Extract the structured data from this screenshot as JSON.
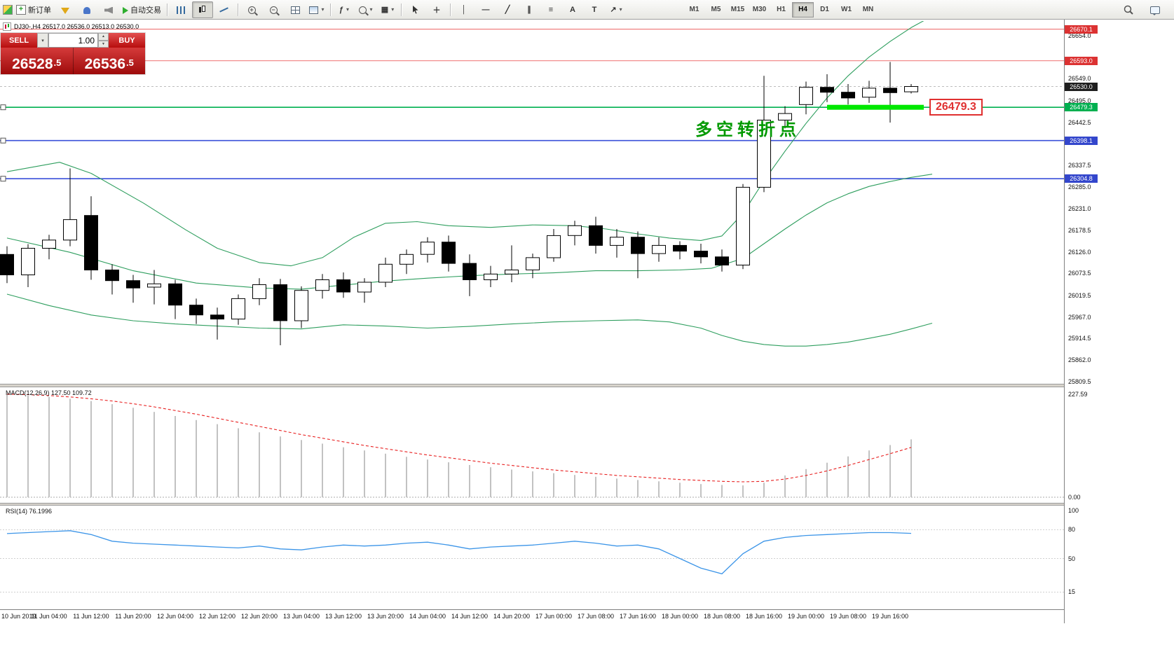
{
  "toolbar": {
    "new_order": "新订单",
    "auto_trading": "自动交易",
    "timeframes": [
      "M1",
      "M5",
      "M15",
      "M30",
      "H1",
      "H4",
      "D1",
      "W1",
      "MN"
    ],
    "active_timeframe": "H4"
  },
  "header": {
    "symbol_info": "DJ30-,H4  26517.0 26536.0 26513.0 26530.0"
  },
  "trade_panel": {
    "sell_label": "SELL",
    "buy_label": "BUY",
    "volume": "1.00",
    "sell_price_int": "26528",
    "sell_price_frac": ".5",
    "buy_price_int": "26536",
    "buy_price_frac": ".5"
  },
  "annotation": {
    "turning_point_text": "多空转折点",
    "level_tag": "26479.3"
  },
  "macd_panel": {
    "label": "MACD(12,26,9) 127.50 109.72"
  },
  "rsi_panel": {
    "label": "RSI(14) 76.1996"
  },
  "colors": {
    "line_red": "#f08080",
    "badge_red": "#dc3232",
    "level_green": "#00b050",
    "segment_green": "#00e800",
    "level_blue": "#3a50d9",
    "badge_blue": "#3346cc",
    "badge_dark": "#1f1f1f",
    "bollinger_green": "#2e9e5e",
    "macd_signal_red": "#e82020",
    "macd_hist_gray": "#c2c2c2",
    "rsi_blue": "#3c95e8",
    "annotation_green": "#009900",
    "trade_panel_red": "#b70d0d"
  },
  "chart_data": {
    "type": "candlestick",
    "title": "DJ30-,H4",
    "current_ohlc": {
      "open": 26517.0,
      "high": 26536.0,
      "low": 26513.0,
      "close": 26530.0
    },
    "y_range_top": 26690,
    "y_range_bottom": 25804,
    "bid_price": 26530.0,
    "price_axis_labels": [
      26654.0,
      26549.0,
      26495.0,
      26442.5,
      26337.5,
      26285.0,
      26231.0,
      26178.5,
      26126.0,
      26073.5,
      26019.5,
      25967.0,
      25914.5,
      25862.0,
      25809.5
    ],
    "price_badges": [
      {
        "price": 26670.1,
        "style": "red"
      },
      {
        "price": 26593.0,
        "style": "red"
      },
      {
        "price": 26530.0,
        "style": "dark"
      },
      {
        "price": 26479.3,
        "style": "green"
      },
      {
        "price": 26398.1,
        "style": "blue"
      },
      {
        "price": 26304.8,
        "style": "blue"
      }
    ],
    "levels": [
      {
        "price": 26670.1,
        "color": "red"
      },
      {
        "price": 26593.0,
        "color": "red"
      },
      {
        "price": 26479.3,
        "color": "green"
      },
      {
        "price": 26398.1,
        "color": "blue"
      },
      {
        "price": 26304.8,
        "color": "blue"
      }
    ],
    "highlight_segment": {
      "price": 26479.3,
      "from_bar": 39,
      "to_bar": 43.6
    },
    "candles": [
      [
        26120,
        26140,
        26050,
        26070
      ],
      [
        26070,
        26145,
        26040,
        26135
      ],
      [
        26135,
        26168,
        26108,
        26155
      ],
      [
        26155,
        26330,
        26140,
        26205
      ],
      [
        26215,
        26262,
        26058,
        26082
      ],
      [
        26082,
        26096,
        26022,
        26056
      ],
      [
        26056,
        26070,
        26002,
        26038
      ],
      [
        26040,
        26082,
        25998,
        26048
      ],
      [
        26048,
        26058,
        25962,
        25996
      ],
      [
        25996,
        26012,
        25950,
        25972
      ],
      [
        25972,
        25990,
        25912,
        25962
      ],
      [
        25962,
        26022,
        25948,
        26012
      ],
      [
        26012,
        26062,
        25996,
        26046
      ],
      [
        26046,
        26060,
        25898,
        25958
      ],
      [
        25958,
        26042,
        25940,
        26032
      ],
      [
        26032,
        26072,
        26012,
        26058
      ],
      [
        26058,
        26076,
        26014,
        26028
      ],
      [
        26028,
        26062,
        26002,
        26052
      ],
      [
        26052,
        26112,
        26040,
        26096
      ],
      [
        26096,
        26132,
        26072,
        26120
      ],
      [
        26120,
        26162,
        26100,
        26150
      ],
      [
        26150,
        26166,
        26078,
        26098
      ],
      [
        26098,
        26120,
        26018,
        26058
      ],
      [
        26058,
        26092,
        26040,
        26072
      ],
      [
        26072,
        26142,
        26052,
        26082
      ],
      [
        26082,
        26122,
        26062,
        26112
      ],
      [
        26112,
        26182,
        26102,
        26166
      ],
      [
        26166,
        26202,
        26142,
        26190
      ],
      [
        26190,
        26212,
        26122,
        26142
      ],
      [
        26142,
        26182,
        26112,
        26162
      ],
      [
        26162,
        26176,
        26062,
        26122
      ],
      [
        26122,
        26162,
        26102,
        26142
      ],
      [
        26142,
        26152,
        26108,
        26128
      ],
      [
        26128,
        26146,
        26098,
        26114
      ],
      [
        26114,
        26132,
        26078,
        26094
      ],
      [
        26094,
        26292,
        26084,
        26284
      ],
      [
        26284,
        26556,
        26272,
        26448
      ],
      [
        26448,
        26482,
        26428,
        26464
      ],
      [
        26486,
        26542,
        26462,
        26528
      ],
      [
        26528,
        26560,
        26492,
        26516
      ],
      [
        26516,
        26536,
        26486,
        26502
      ],
      [
        26504,
        26544,
        26490,
        26526
      ],
      [
        26526,
        26590,
        26442,
        26515
      ],
      [
        26517,
        26536,
        26513,
        26530
      ]
    ],
    "bollinger": {
      "upper": [
        [
          0,
          26322
        ],
        [
          2.5,
          26345
        ],
        [
          4,
          26318
        ],
        [
          6.5,
          26245
        ],
        [
          8.5,
          26180
        ],
        [
          10,
          26135
        ],
        [
          12,
          26100
        ],
        [
          13.5,
          26092
        ],
        [
          15,
          26112
        ],
        [
          16.5,
          26162
        ],
        [
          18,
          26196
        ],
        [
          19.5,
          26200
        ],
        [
          21,
          26190
        ],
        [
          23,
          26186
        ],
        [
          25,
          26192
        ],
        [
          27,
          26190
        ],
        [
          28.5,
          26182
        ],
        [
          30,
          26170
        ],
        [
          31.5,
          26160
        ],
        [
          33,
          26154
        ],
        [
          34,
          26165
        ],
        [
          35,
          26220
        ],
        [
          36,
          26300
        ],
        [
          37,
          26372
        ],
        [
          38,
          26440
        ],
        [
          39,
          26502
        ],
        [
          40,
          26556
        ],
        [
          41,
          26602
        ],
        [
          42,
          26640
        ],
        [
          43,
          26674
        ],
        [
          44,
          26702
        ]
      ],
      "middle": [
        [
          0,
          26160
        ],
        [
          3,
          26125
        ],
        [
          6,
          26080
        ],
        [
          9,
          26050
        ],
        [
          12,
          26038
        ],
        [
          14,
          26035
        ],
        [
          16,
          26045
        ],
        [
          18,
          26055
        ],
        [
          20,
          26062
        ],
        [
          22,
          26068
        ],
        [
          24,
          26072
        ],
        [
          26,
          26075
        ],
        [
          28,
          26080
        ],
        [
          30,
          26080
        ],
        [
          32,
          26082
        ],
        [
          33.5,
          26086
        ],
        [
          35,
          26110
        ],
        [
          36,
          26146
        ],
        [
          37,
          26182
        ],
        [
          38,
          26216
        ],
        [
          39,
          26246
        ],
        [
          40,
          26268
        ],
        [
          41,
          26286
        ],
        [
          42,
          26298
        ],
        [
          43,
          26308
        ],
        [
          44,
          26316
        ]
      ],
      "lower": [
        [
          0,
          26023
        ],
        [
          2,
          25995
        ],
        [
          4,
          25972
        ],
        [
          6,
          25958
        ],
        [
          8,
          25950
        ],
        [
          10,
          25945
        ],
        [
          12,
          25940
        ],
        [
          14,
          25938
        ],
        [
          16,
          25948
        ],
        [
          18,
          25945
        ],
        [
          20,
          25940
        ],
        [
          22,
          25944
        ],
        [
          24,
          25950
        ],
        [
          26,
          25955
        ],
        [
          28,
          25958
        ],
        [
          30,
          25960
        ],
        [
          31.5,
          25955
        ],
        [
          33,
          25940
        ],
        [
          34,
          25922
        ],
        [
          35,
          25908
        ],
        [
          36,
          25900
        ],
        [
          37,
          25896
        ],
        [
          38,
          25896
        ],
        [
          39,
          25900
        ],
        [
          40,
          25906
        ],
        [
          41,
          25915
        ],
        [
          42,
          25925
        ],
        [
          43,
          25938
        ],
        [
          44,
          25952
        ]
      ]
    },
    "macd": {
      "scale_max": 227.59,
      "current_macd": 127.5,
      "current_signal": 109.72,
      "histogram": [
        226,
        224,
        221,
        217,
        212,
        205,
        197,
        188,
        179,
        170,
        161,
        152,
        143,
        134,
        126,
        118,
        110,
        103,
        96,
        89,
        83,
        77,
        71,
        66,
        61,
        57,
        53,
        49,
        45,
        41,
        38,
        35,
        32,
        29,
        27,
        26,
        32,
        48,
        62,
        76,
        90,
        103,
        115,
        127.5
      ],
      "signal": [
        227,
        226,
        224,
        221,
        217,
        212,
        206,
        199,
        191,
        183,
        174,
        165,
        156,
        147,
        138,
        130,
        122,
        114,
        107,
        100,
        93,
        87,
        81,
        75,
        70,
        65,
        60,
        56,
        52,
        48,
        45,
        42,
        39,
        37,
        35,
        34,
        35,
        40,
        48,
        58,
        70,
        83,
        96,
        109.7
      ]
    },
    "rsi": {
      "current": 76.1996,
      "axis_levels": [
        100,
        80,
        50,
        15
      ],
      "values": [
        76,
        77,
        78,
        79,
        75,
        68,
        66,
        65,
        64,
        63,
        62,
        61,
        63,
        60,
        59,
        62,
        64,
        63,
        64,
        66,
        67,
        64,
        60,
        62,
        63,
        64,
        66,
        68,
        66,
        63,
        64,
        60,
        50,
        40,
        34,
        55,
        68,
        72,
        74,
        75,
        76,
        77,
        77,
        76.2
      ]
    },
    "x_labels": [
      "10 Jun 2019",
      "11 Jun 04:00",
      "11 Jun 12:00",
      "11 Jun 20:00",
      "12 Jun 04:00",
      "12 Jun 12:00",
      "12 Jun 20:00",
      "13 Jun 04:00",
      "13 Jun 12:00",
      "13 Jun 20:00",
      "14 Jun 04:00",
      "14 Jun 12:00",
      "14 Jun 20:00",
      "17 Jun 00:00",
      "17 Jun 08:00",
      "17 Jun 16:00",
      "18 Jun 00:00",
      "18 Jun 08:00",
      "18 Jun 16:00",
      "19 Jun 00:00",
      "19 Jun 08:00",
      "19 Jun 16:00"
    ]
  }
}
